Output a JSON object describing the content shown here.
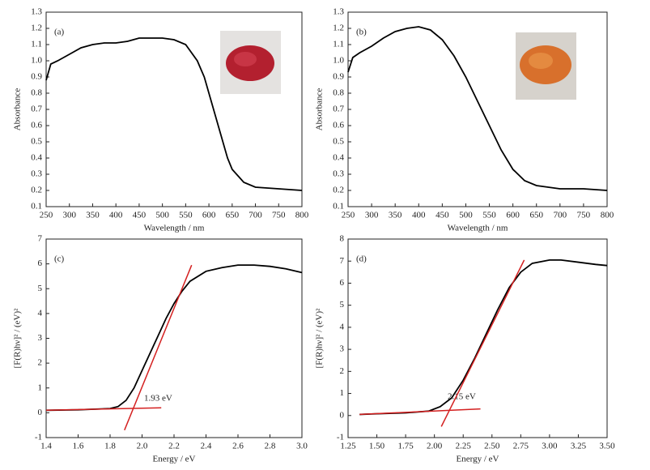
{
  "chart_data": [
    {
      "type": "line",
      "label": "(a)",
      "x_label": "Wavelength / nm",
      "y_label": "Absorbance",
      "xlim": [
        250,
        800
      ],
      "ylim": [
        0.1,
        1.3
      ],
      "xticks": [
        250,
        300,
        350,
        400,
        450,
        500,
        550,
        600,
        650,
        700,
        750,
        800
      ],
      "yticks": [
        0.1,
        0.2,
        0.3,
        0.4,
        0.5,
        0.6,
        0.7,
        0.8,
        0.9,
        {
          "value": 1,
          "label": "1.0"
        },
        1.1,
        1.2,
        1.3
      ],
      "series": [
        {
          "color": "#000000",
          "x": [
            250,
            260,
            275,
            300,
            325,
            350,
            375,
            400,
            425,
            450,
            475,
            500,
            525,
            550,
            575,
            590,
            600,
            615,
            625,
            640,
            650,
            675,
            700,
            750,
            800
          ],
          "values": [
            0.88,
            0.98,
            1.0,
            1.04,
            1.08,
            1.1,
            1.11,
            1.11,
            1.12,
            1.14,
            1.14,
            1.14,
            1.13,
            1.1,
            1.0,
            0.9,
            0.8,
            0.65,
            0.55,
            0.4,
            0.33,
            0.25,
            0.22,
            0.21,
            0.2
          ]
        }
      ]
    },
    {
      "type": "line",
      "label": "(b)",
      "x_label": "Wavelength / nm",
      "y_label": "Absorbance",
      "xlim": [
        250,
        800
      ],
      "ylim": [
        0.1,
        1.3
      ],
      "xticks": [
        250,
        300,
        350,
        400,
        450,
        500,
        550,
        600,
        650,
        700,
        750,
        800
      ],
      "yticks": [
        0.1,
        0.2,
        0.3,
        0.4,
        0.5,
        0.6,
        0.7,
        0.8,
        0.9,
        {
          "value": 1,
          "label": "1.0"
        },
        1.1,
        1.2,
        1.3
      ],
      "series": [
        {
          "color": "#000000",
          "x": [
            250,
            260,
            275,
            300,
            325,
            350,
            375,
            400,
            425,
            450,
            475,
            500,
            525,
            550,
            575,
            600,
            625,
            650,
            700,
            750,
            800
          ],
          "values": [
            0.93,
            1.02,
            1.05,
            1.09,
            1.14,
            1.18,
            1.2,
            1.21,
            1.19,
            1.13,
            1.03,
            0.9,
            0.75,
            0.6,
            0.45,
            0.33,
            0.26,
            0.23,
            0.21,
            0.21,
            0.2
          ]
        }
      ]
    },
    {
      "type": "line",
      "label": "(c)",
      "x_label": "Energy  / eV",
      "y_label": "[F(R)hν]² / (eV)²",
      "annotation": "1.93 eV",
      "xlim": [
        1.4,
        3.0
      ],
      "ylim": [
        -1,
        7
      ],
      "xticks": [
        1.4,
        1.6,
        1.8,
        {
          "value": 2,
          "label": "2.0"
        },
        2.2,
        2.4,
        2.6,
        2.8,
        {
          "value": 3,
          "label": "3.0"
        }
      ],
      "yticks": [
        -1,
        0,
        1,
        2,
        3,
        4,
        5,
        6,
        7
      ],
      "series": [
        {
          "color": "#000000",
          "x": [
            1.4,
            1.6,
            1.8,
            1.85,
            1.9,
            1.95,
            2.0,
            2.05,
            2.1,
            2.15,
            2.2,
            2.25,
            2.3,
            2.4,
            2.5,
            2.6,
            2.7,
            2.8,
            2.9,
            3.0
          ],
          "values": [
            0.1,
            0.12,
            0.17,
            0.25,
            0.5,
            1.0,
            1.7,
            2.4,
            3.1,
            3.8,
            4.4,
            4.9,
            5.3,
            5.7,
            5.85,
            5.95,
            5.95,
            5.9,
            5.8,
            5.65
          ]
        },
        {
          "color": "#d42020",
          "x": [
            1.4,
            2.12
          ],
          "values": [
            0.1,
            0.2
          ]
        },
        {
          "color": "#d42020",
          "x": [
            1.89,
            2.31
          ],
          "values": [
            -0.7,
            5.95
          ]
        }
      ]
    },
    {
      "type": "line",
      "label": "(d)",
      "x_label": "Energy  / eV",
      "y_label": "[F(R)hν]² / (eV)²",
      "annotation": "2.15 eV",
      "xlim": [
        1.25,
        3.5
      ],
      "ylim": [
        -1,
        8
      ],
      "xticks": [
        1.25,
        {
          "value": 1.5,
          "label": "1.50"
        },
        1.75,
        {
          "value": 2,
          "label": "2.00"
        },
        2.25,
        {
          "value": 2.5,
          "label": "2.50"
        },
        2.75,
        {
          "value": 3,
          "label": "3.00"
        },
        3.25,
        {
          "value": 3.5,
          "label": "3.50"
        }
      ],
      "yticks": [
        -1,
        0,
        1,
        2,
        3,
        4,
        5,
        6,
        7,
        8
      ],
      "series": [
        {
          "color": "#000000",
          "x": [
            1.35,
            1.5,
            1.75,
            1.95,
            2.05,
            2.15,
            2.25,
            2.35,
            2.45,
            2.55,
            2.65,
            2.75,
            2.85,
            3.0,
            3.1,
            3.25,
            3.4,
            3.5
          ],
          "values": [
            0.05,
            0.08,
            0.12,
            0.2,
            0.4,
            0.8,
            1.6,
            2.6,
            3.7,
            4.8,
            5.8,
            6.5,
            6.9,
            7.05,
            7.05,
            6.95,
            6.85,
            6.8
          ]
        },
        {
          "color": "#d42020",
          "x": [
            1.35,
            2.4
          ],
          "values": [
            0.05,
            0.3
          ]
        },
        {
          "color": "#d42020",
          "x": [
            2.06,
            2.78
          ],
          "values": [
            -0.5,
            7.05
          ]
        }
      ]
    }
  ]
}
